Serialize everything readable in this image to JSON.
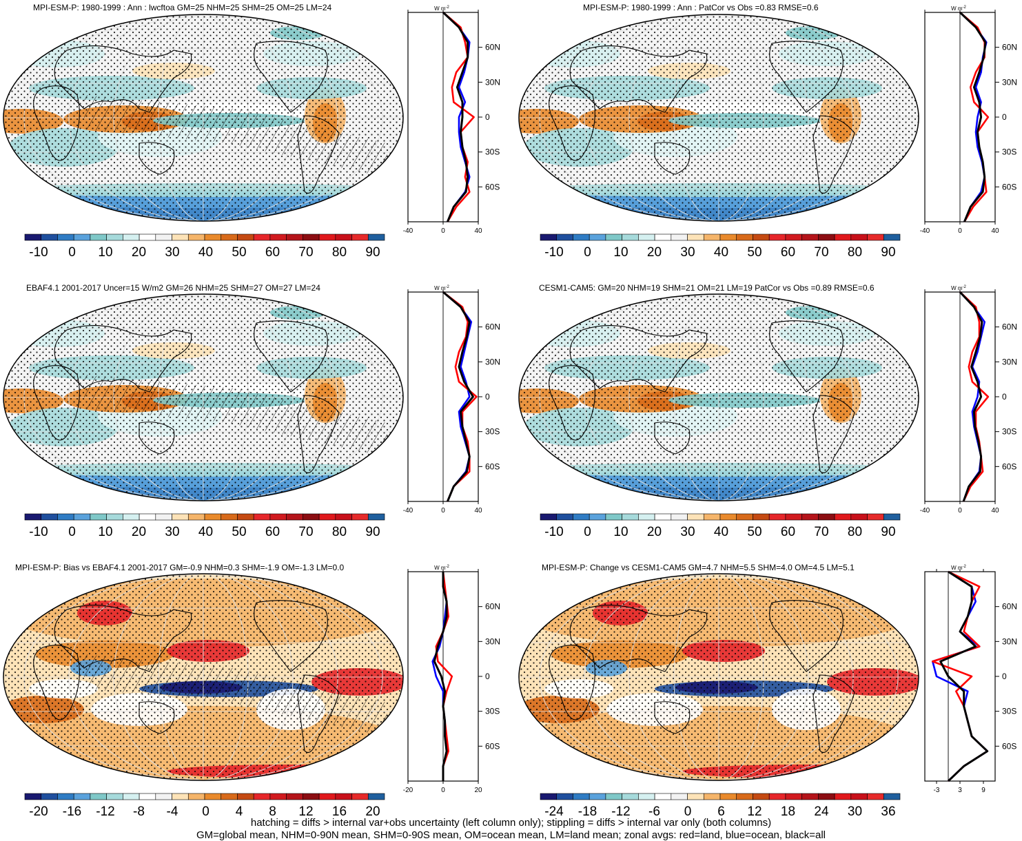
{
  "panels": [
    {
      "title": "MPI-ESM-P: 1980-1999 : Ann : lwcftoa GM=25 NHM=25 SHM=25 OM=25 LM=24",
      "colorbar_labels": [
        "-10",
        "0",
        "10",
        "20",
        "30",
        "40",
        "50",
        "60",
        "70",
        "80",
        "90"
      ],
      "zonal_xticks": [
        "-40",
        "0",
        "40"
      ],
      "hatched": true,
      "style": "field"
    },
    {
      "title": "MPI-ESM-P: 1980-1999 : Ann : PatCor vs Obs =0.83 RMSE=0.6",
      "colorbar_labels": [
        "-10",
        "0",
        "10",
        "20",
        "30",
        "40",
        "50",
        "60",
        "70",
        "80",
        "90"
      ],
      "zonal_xticks": [
        "-40",
        "0",
        "40"
      ],
      "hatched": false,
      "style": "field"
    },
    {
      "title": "EBAF4.1 2001-2017 Uncer=15 W/m2 GM=26 NHM=25 SHM=27 OM=27 LM=24",
      "colorbar_labels": [
        "-10",
        "0",
        "10",
        "20",
        "30",
        "40",
        "50",
        "60",
        "70",
        "80",
        "90"
      ],
      "zonal_xticks": [
        "-40",
        "0",
        "40"
      ],
      "hatched": true,
      "style": "field"
    },
    {
      "title": "CESM1-CAM5: GM=20 NHM=19 SHM=21 OM=21 LM=19 PatCor vs Obs =0.89 RMSE=0.6",
      "colorbar_labels": [
        "-10",
        "0",
        "10",
        "20",
        "30",
        "40",
        "50",
        "60",
        "70",
        "80",
        "90"
      ],
      "zonal_xticks": [
        "-40",
        "0",
        "40"
      ],
      "hatched": false,
      "style": "field"
    },
    {
      "title": "MPI-ESM-P: Bias vs EBAF4.1 2001-2017 GM=-0.9 NHM=0.3 SHM=-1.9 OM=-1.3 LM=0.0",
      "colorbar_labels": [
        "-20",
        "-16",
        "-12",
        "-8",
        "-4",
        "0",
        "4",
        "8",
        "12",
        "16",
        "20"
      ],
      "zonal_xticks": [
        "-20",
        "0",
        "20"
      ],
      "hatched": true,
      "style": "diff"
    },
    {
      "title": "MPI-ESM-P: Change vs CESM1-CAM5 GM=4.7 NHM=5.5 SHM=4.0 OM=4.5 LM=5.1",
      "colorbar_labels": [
        "-24",
        "-18",
        "-12",
        "-6",
        "0",
        "6",
        "12",
        "18",
        "24",
        "30",
        "36"
      ],
      "zonal_xticks": [
        "-3",
        "3",
        "9"
      ],
      "hatched": false,
      "style": "diff"
    }
  ],
  "zonal_yticks": [
    "60N",
    "30N",
    "0",
    "30S",
    "60S"
  ],
  "zonal_unit": "W m-2",
  "zonal_unit_base": "W m",
  "zonal_unit_exp": "-2",
  "palette": [
    "#191970",
    "#1f4f9e",
    "#2f7cc4",
    "#5aa2dc",
    "#7fc8c8",
    "#a6dadb",
    "#d5f0f0",
    "#ffffff",
    "#f2f2f2",
    "#fde3b8",
    "#f5b56a",
    "#e98a2c",
    "#d86a1a",
    "#c54a12",
    "#e6262a",
    "#d11a1f",
    "#b5141a",
    "#8c0d12",
    "#e0181c",
    "#c8101a",
    "#e62a2a",
    "#1f5f9e"
  ],
  "series_colors": {
    "land": "#ff0000",
    "ocean": "#0000ff",
    "all": "#000000"
  },
  "chart_data": [
    {
      "type": "heatmap",
      "title": "MPI-ESM-P: 1980-1999 : Ann : lwcftoa GM=25 NHM=25 SHM=25 OM=25 LM=24",
      "variable": "lwcftoa",
      "colorbar": [
        -10,
        0,
        10,
        20,
        30,
        40,
        50,
        60,
        70,
        80,
        90
      ],
      "stats": {
        "GM": 25,
        "NHM": 25,
        "SHM": 25,
        "OM": 25,
        "LM": 24
      },
      "zonal": {
        "xlim": [
          -40,
          40
        ],
        "xticks": [
          -40,
          0,
          40
        ],
        "latitudes": [
          90,
          60,
          30,
          0,
          -30,
          -60,
          -90
        ],
        "series": [
          {
            "name": "land",
            "values": [
              0,
              20,
              25,
              28,
              15,
              10,
              12,
              35,
              20,
              22,
              28,
              25,
              30,
              15,
              5
            ]
          },
          {
            "name": "ocean",
            "values": [
              0,
              18,
              30,
              28,
              24,
              18,
              25,
              18,
              18,
              20,
              25,
              30,
              25,
              12,
              5
            ]
          },
          {
            "name": "all",
            "values": [
              0,
              18,
              28,
              28,
              22,
              16,
              22,
              22,
              20,
              22,
              26,
              28,
              26,
              12,
              5
            ]
          }
        ]
      }
    },
    {
      "type": "heatmap",
      "title": "MPI-ESM-P: 1980-1999 : Ann : PatCor vs Obs =0.83 RMSE=0.6",
      "colorbar": [
        -10,
        0,
        10,
        20,
        30,
        40,
        50,
        60,
        70,
        80,
        90
      ],
      "stats": {
        "PatCor": 0.83,
        "RMSE": 0.6
      },
      "zonal": {
        "xlim": [
          -40,
          40
        ],
        "xticks": [
          -40,
          0,
          40
        ],
        "latitudes": [
          90,
          60,
          30,
          0,
          -30,
          -60,
          -90
        ],
        "series": [
          {
            "name": "land",
            "values": [
              0,
              20,
              28,
              28,
              18,
              12,
              16,
              32,
              20,
              22,
              26,
              28,
              30,
              15,
              5
            ]
          },
          {
            "name": "ocean",
            "values": [
              0,
              18,
              30,
              26,
              24,
              18,
              24,
              20,
              18,
              20,
              25,
              28,
              24,
              12,
              5
            ]
          },
          {
            "name": "all",
            "values": [
              0,
              18,
              29,
              27,
              22,
              16,
              22,
              24,
              20,
              22,
              26,
              28,
              26,
              12,
              5
            ]
          }
        ]
      }
    },
    {
      "type": "heatmap",
      "title": "EBAF4.1 2001-2017 Uncer=15 W/m2 GM=26 NHM=25 SHM=27 OM=27 LM=24",
      "colorbar": [
        -10,
        0,
        10,
        20,
        30,
        40,
        50,
        60,
        70,
        80,
        90
      ],
      "stats": {
        "Uncer": 15,
        "GM": 26,
        "NHM": 25,
        "SHM": 27,
        "OM": 27,
        "LM": 24
      },
      "zonal": {
        "xlim": [
          -40,
          40
        ],
        "xticks": [
          -40,
          0,
          40
        ],
        "latitudes": [
          90,
          60,
          30,
          0,
          -30,
          -60,
          -90
        ],
        "series": [
          {
            "name": "land",
            "values": [
              0,
              22,
              28,
              26,
              18,
              14,
              18,
              38,
              22,
              22,
              28,
              30,
              30,
              12,
              5
            ]
          },
          {
            "name": "ocean",
            "values": [
              0,
              20,
              32,
              28,
              24,
              20,
              26,
              30,
              18,
              20,
              25,
              30,
              26,
              12,
              5
            ]
          },
          {
            "name": "all",
            "values": [
              0,
              20,
              30,
              27,
              22,
              18,
              24,
              34,
              20,
              22,
              26,
              30,
              27,
              12,
              5
            ]
          }
        ]
      }
    },
    {
      "type": "heatmap",
      "title": "CESM1-CAM5: GM=20 NHM=19 SHM=21 OM=21 LM=19 PatCor vs Obs =0.89 RMSE=0.6",
      "colorbar": [
        -10,
        0,
        10,
        20,
        30,
        40,
        50,
        60,
        70,
        80,
        90
      ],
      "stats": {
        "GM": 20,
        "NHM": 19,
        "SHM": 21,
        "OM": 21,
        "LM": 19,
        "PatCor": 0.89,
        "RMSE": 0.6
      },
      "zonal": {
        "xlim": [
          -40,
          40
        ],
        "xticks": [
          -40,
          0,
          40
        ],
        "latitudes": [
          90,
          60,
          30,
          0,
          -30,
          -60,
          -90
        ],
        "series": [
          {
            "name": "land",
            "values": [
              0,
              18,
              22,
              22,
              14,
              10,
              14,
              32,
              18,
              18,
              22,
              24,
              26,
              12,
              4
            ]
          },
          {
            "name": "ocean",
            "values": [
              0,
              16,
              28,
              24,
              20,
              14,
              22,
              20,
              14,
              16,
              20,
              24,
              22,
              10,
              4
            ]
          },
          {
            "name": "all",
            "values": [
              0,
              16,
              25,
              23,
              18,
              13,
              20,
              24,
              16,
              17,
              21,
              24,
              23,
              10,
              4
            ]
          }
        ]
      }
    },
    {
      "type": "heatmap",
      "title": "MPI-ESM-P: Bias vs EBAF4.1 2001-2017 GM=-0.9 NHM=0.3 SHM=-1.9 OM=-1.3 LM=0.0",
      "colorbar": [
        -20,
        -16,
        -12,
        -8,
        -4,
        0,
        4,
        8,
        12,
        16,
        20
      ],
      "stats": {
        "GM": -0.9,
        "NHM": 0.3,
        "SHM": -1.9,
        "OM": -1.3,
        "LM": 0.0
      },
      "zonal": {
        "xlim": [
          -20,
          20
        ],
        "xticks": [
          -20,
          0,
          20
        ],
        "latitudes": [
          90,
          60,
          30,
          0,
          -30,
          -60,
          -90
        ],
        "series": [
          {
            "name": "land",
            "values": [
              0,
              1,
              2,
              3,
              0,
              -4,
              -3,
              5,
              2,
              0,
              1,
              2,
              3,
              0,
              0
            ]
          },
          {
            "name": "ocean",
            "values": [
              0,
              0,
              2,
              1,
              0,
              -2,
              -6,
              -4,
              0,
              0,
              1,
              1,
              2,
              0,
              0
            ]
          },
          {
            "name": "all",
            "values": [
              0,
              0,
              2,
              2,
              0,
              -3,
              -5,
              -1,
              1,
              0,
              1,
              1,
              2,
              0,
              0
            ]
          }
        ]
      }
    },
    {
      "type": "heatmap",
      "title": "MPI-ESM-P: Change vs CESM1-CAM5 GM=4.7 NHM=5.5 SHM=4.0 OM=4.5 LM=5.1",
      "colorbar": [
        -24,
        -18,
        -12,
        -6,
        0,
        6,
        12,
        18,
        24,
        30,
        36
      ],
      "stats": {
        "GM": 4.7,
        "NHM": 5.5,
        "SHM": 4.0,
        "OM": 4.5,
        "LM": 5.1
      },
      "zonal": {
        "xlim": [
          -6,
          12
        ],
        "xticks": [
          -3,
          3,
          9
        ],
        "latitudes": [
          90,
          60,
          30,
          0,
          -30,
          -60,
          -90
        ],
        "series": [
          {
            "name": "land",
            "values": [
              0,
              8,
              6,
              5,
              4,
              8,
              -4,
              6,
              2,
              4,
              5,
              6,
              10,
              4,
              0
            ]
          },
          {
            "name": "ocean",
            "values": [
              0,
              6,
              7,
              5,
              3,
              8,
              -4,
              -3,
              5,
              4,
              5,
              6,
              10,
              4,
              0
            ]
          },
          {
            "name": "all",
            "values": [
              0,
              6,
              6,
              5,
              3,
              7,
              -2,
              0,
              4,
              4,
              5,
              6,
              10,
              4,
              0
            ]
          }
        ]
      }
    }
  ],
  "footer": {
    "line1": "hatching = diffs > internal var+obs uncertainty (left column only); stippling = diffs > internal var only (both columns)",
    "line2": "GM=global mean, NHM=0-90N mean, SHM=0-90S mean, OM=ocean mean, LM=land mean; zonal avgs: red=land, blue=ocean, black=all"
  }
}
